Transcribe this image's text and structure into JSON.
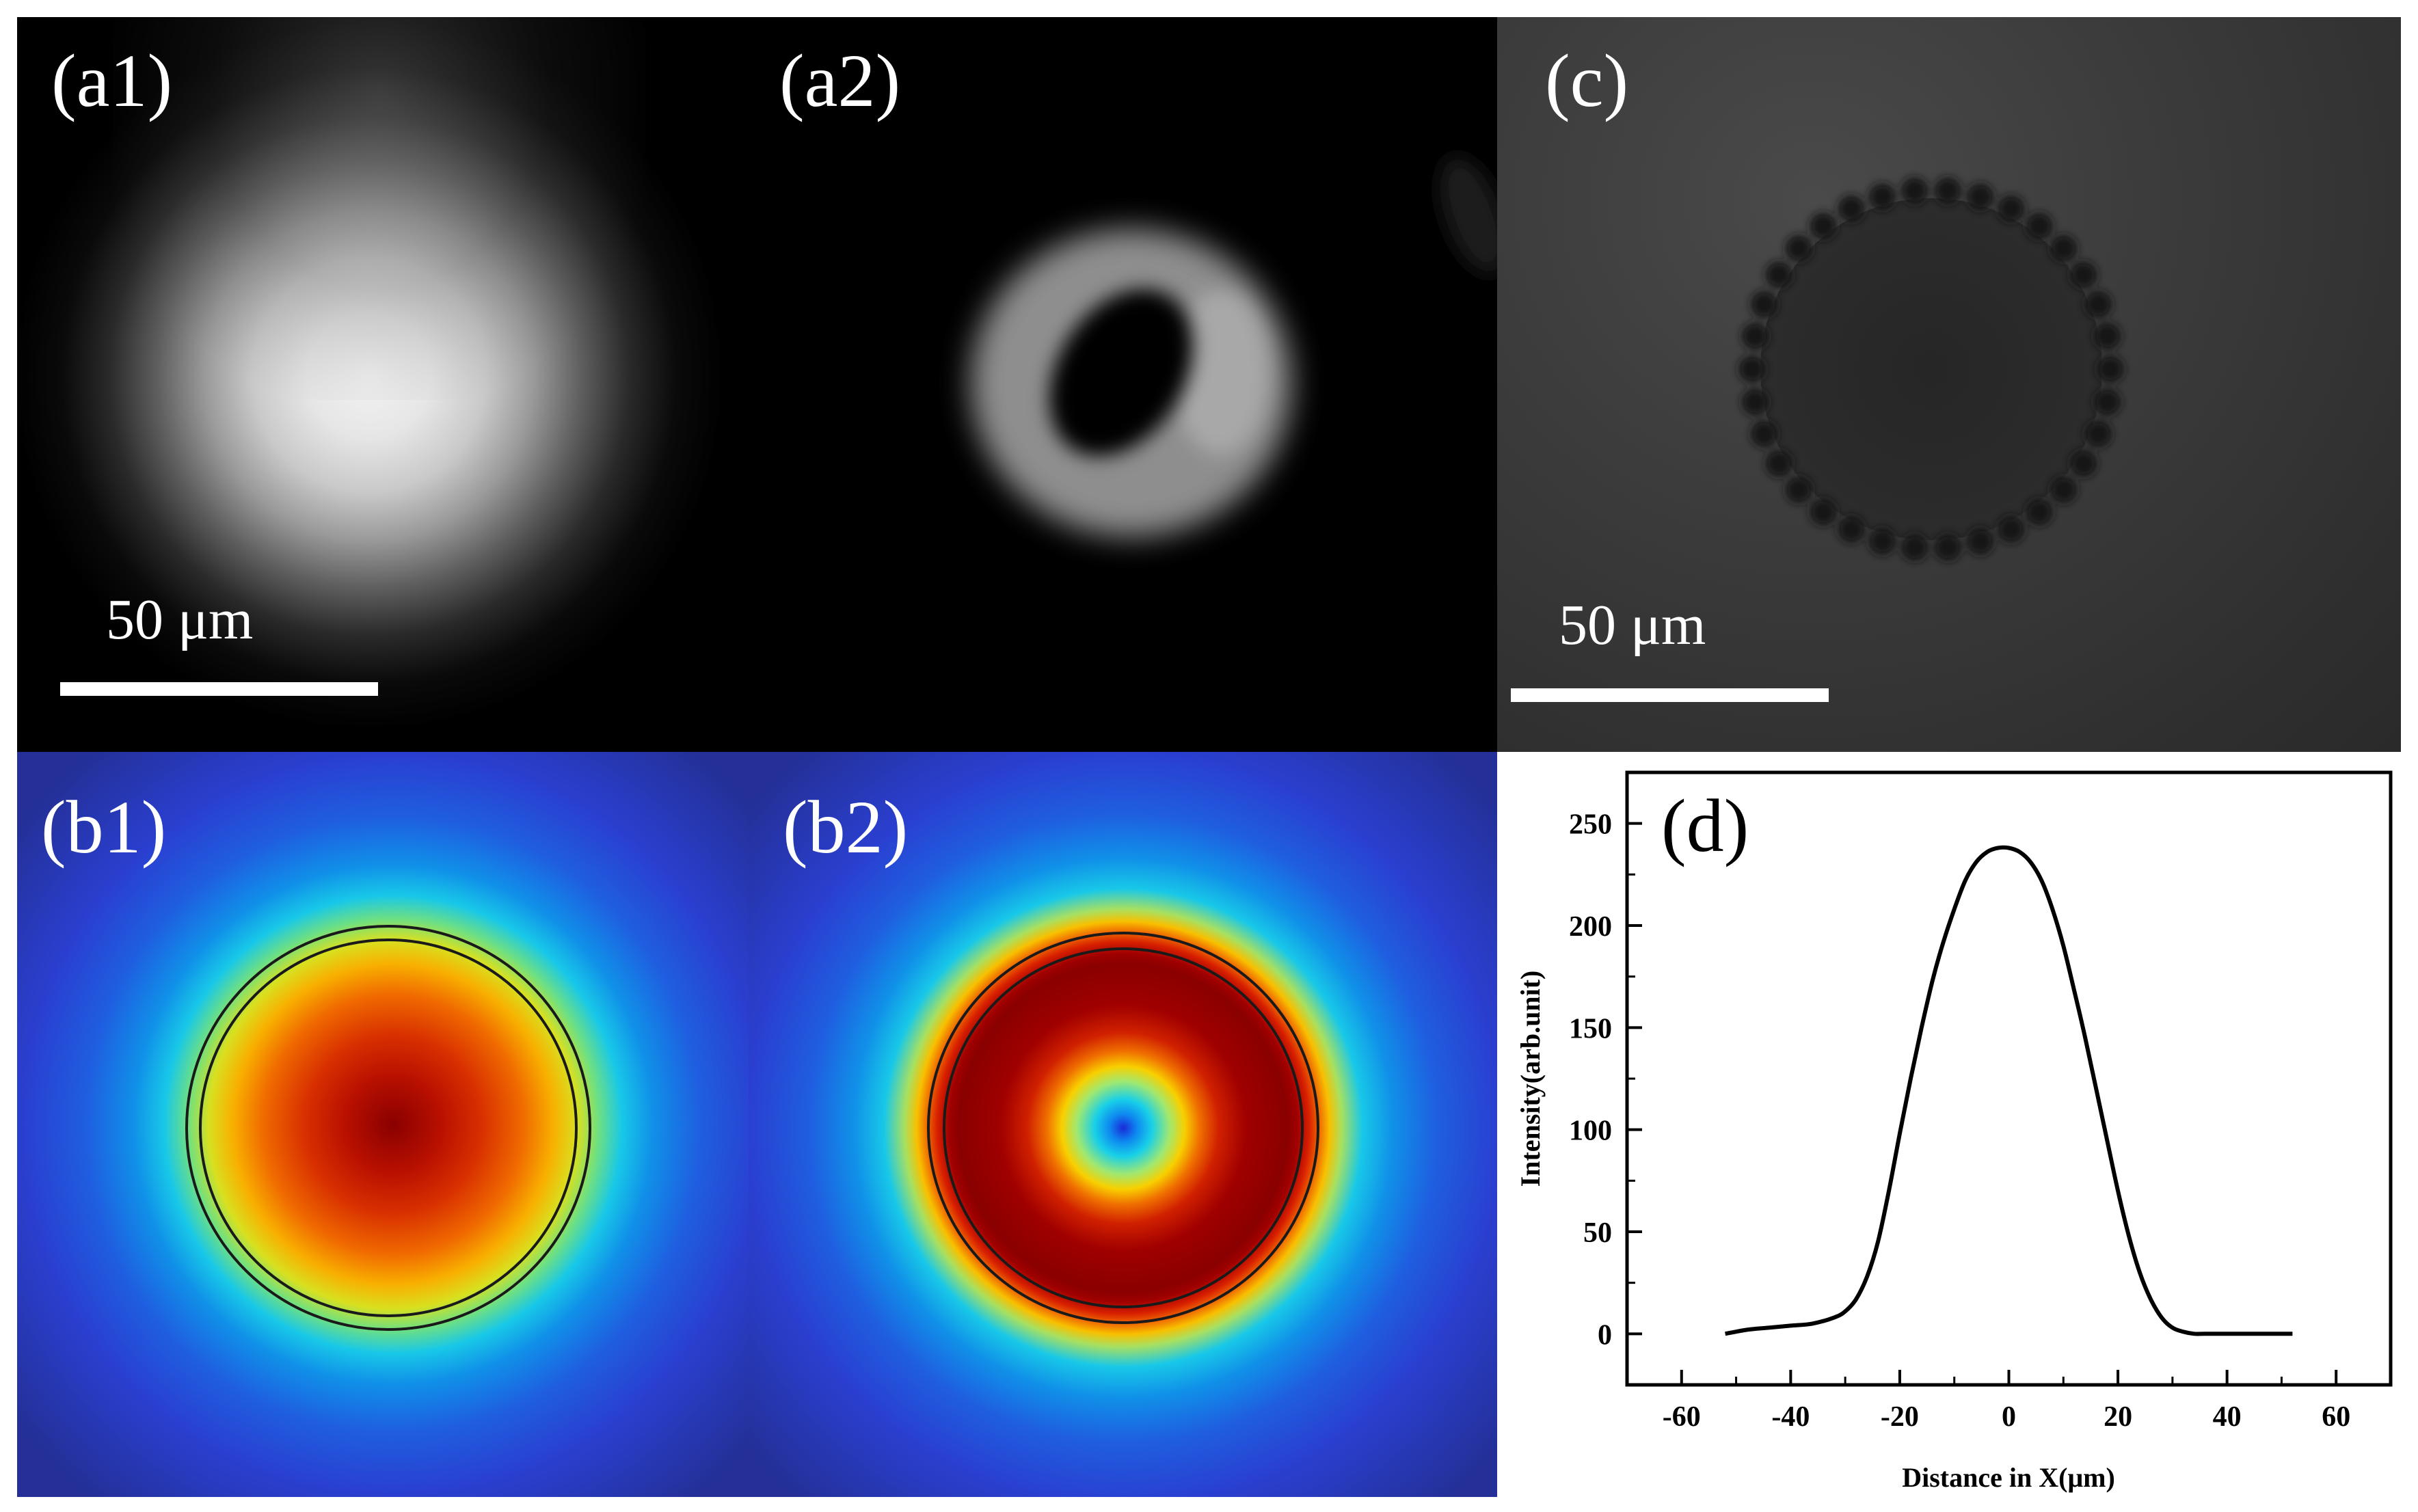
{
  "panels": {
    "a1": {
      "label": "(a1)",
      "scale_text": "50 μm"
    },
    "a2": {
      "label": "(a2)"
    },
    "c": {
      "label": "(c)",
      "scale_text": "50 μm"
    },
    "b1": {
      "label": "(b1)"
    },
    "b2": {
      "label": "(b2)"
    },
    "d": {
      "label": "(d)"
    }
  },
  "chart_data": {
    "type": "line",
    "xlabel": "Distance in X(μm)",
    "ylabel": "Intensity(arb.unit)",
    "xlim": [
      -70,
      70
    ],
    "ylim": [
      -25,
      275
    ],
    "xticks": [
      -60,
      -40,
      -20,
      0,
      20,
      40,
      60
    ],
    "yticks": [
      0,
      50,
      100,
      150,
      200,
      250
    ],
    "grid": false,
    "series": [
      {
        "color": "#000000",
        "x": [
          -52,
          -48,
          -44,
          -40,
          -36,
          -32,
          -30,
          -28,
          -26,
          -24,
          -22,
          -20,
          -18,
          -16,
          -14,
          -12,
          -10,
          -8,
          -6,
          -4,
          -2,
          0,
          2,
          4,
          6,
          8,
          10,
          12,
          14,
          16,
          18,
          20,
          22,
          24,
          26,
          28,
          30,
          32,
          34,
          36,
          40,
          44,
          48,
          52
        ],
        "y": [
          0,
          2,
          3,
          4,
          5,
          8,
          11,
          17,
          28,
          45,
          70,
          98,
          125,
          150,
          173,
          192,
          208,
          222,
          231,
          236,
          238,
          238,
          236,
          231,
          222,
          208,
          190,
          168,
          145,
          120,
          95,
          70,
          48,
          30,
          17,
          8,
          3,
          1,
          0,
          0,
          0,
          0,
          0,
          0
        ]
      }
    ]
  }
}
